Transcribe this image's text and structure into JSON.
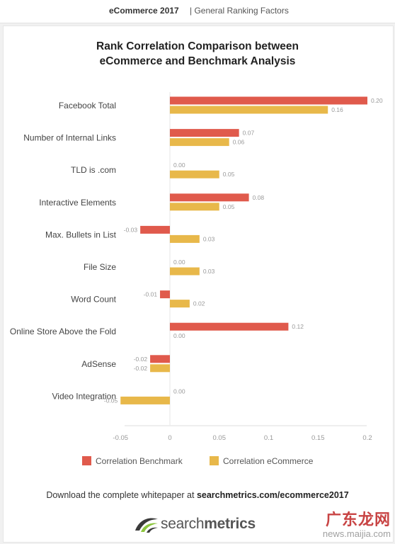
{
  "header": {
    "title": "eCommerce 2017",
    "subtitle": "| General Ranking Factors"
  },
  "chart_data": {
    "type": "bar",
    "orientation": "horizontal",
    "title": [
      "Rank Correlation Comparison between",
      "eCommerce and Benchmark Analysis"
    ],
    "categories": [
      "Facebook Total",
      "Number of Internal Links",
      "TLD is .com",
      "Interactive Elements",
      "Max. Bullets in List",
      "File Size",
      "Word Count",
      "Online Store Above the Fold",
      "AdSense",
      "Video Integration"
    ],
    "series": [
      {
        "name": "Correlation Benchmark",
        "color": "#e05a4c",
        "values": [
          0.2,
          0.07,
          0.0,
          0.08,
          -0.03,
          0.0,
          -0.01,
          0.12,
          -0.02,
          0.0
        ],
        "labels": [
          "0.20",
          "0.07",
          "0.00",
          "0.08",
          "-0.03",
          "0.00",
          "-0.01",
          "0.12",
          "-0.02",
          "0.00"
        ]
      },
      {
        "name": "Correlation eCommerce",
        "color": "#e8b84a",
        "values": [
          0.16,
          0.06,
          0.05,
          0.05,
          0.03,
          0.03,
          0.02,
          0.0,
          -0.02,
          -0.05
        ],
        "labels": [
          "0.16",
          "0.06",
          "0.05",
          "0.05",
          "0.03",
          "0.03",
          "0.02",
          "0.00",
          "-0.02",
          "-0.05"
        ]
      }
    ],
    "xlim": [
      -0.05,
      0.2
    ],
    "xticks": [
      "-0.05",
      "0",
      "0.05",
      "0.1",
      "0.15",
      "0.2"
    ],
    "xtick_values": [
      -0.05,
      0,
      0.05,
      0.1,
      0.15,
      0.2
    ],
    "legend_position": "bottom",
    "grid": false
  },
  "footer": {
    "text": "Download the complete whitepaper at ",
    "link": "searchmetrics.com/ecommerce2017"
  },
  "logo": {
    "regular": "search",
    "bold": "metrics"
  },
  "watermark": {
    "top": "广东龙网",
    "bottom": "news.maijia.com"
  }
}
